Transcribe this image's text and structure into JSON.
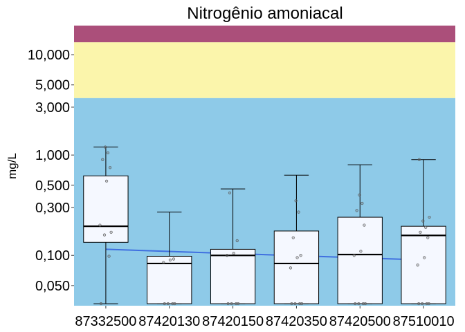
{
  "chart_data": {
    "type": "box",
    "title": "Nitrogênio amoniacal",
    "xlabel": "",
    "ylabel": "mg/L",
    "y_scale": "log10",
    "ylim": [
      0.0315,
      19.5
    ],
    "y_ticks": [
      {
        "value": 0.05,
        "label": "0,050"
      },
      {
        "value": 0.1,
        "label": "0,100"
      },
      {
        "value": 0.3,
        "label": "0,300"
      },
      {
        "value": 0.5,
        "label": "0,500"
      },
      {
        "value": 1,
        "label": "1,000"
      },
      {
        "value": 3,
        "label": "3,000"
      },
      {
        "value": 5,
        "label": "5,000"
      },
      {
        "value": 10,
        "label": "10,000"
      }
    ],
    "bands": [
      {
        "from": 0.0315,
        "to": 3.7,
        "color": "#8ecae8"
      },
      {
        "from": 3.7,
        "to": 13.3,
        "color": "#fbf5ab"
      },
      {
        "from": 13.3,
        "to": 19.5,
        "color": "#ab4f7a"
      }
    ],
    "categories": [
      "87332500",
      "87420130",
      "87420150",
      "87420350",
      "87420500",
      "87510010"
    ],
    "boxes": [
      {
        "category": "87332500",
        "min": 0.033,
        "q1": 0.135,
        "median": 0.195,
        "q3": 0.62,
        "max": 1.2
      },
      {
        "category": "87420130",
        "min": 0.033,
        "q1": 0.033,
        "median": 0.083,
        "q3": 0.098,
        "max": 0.27
      },
      {
        "category": "87420150",
        "min": 0.033,
        "q1": 0.033,
        "median": 0.1,
        "q3": 0.115,
        "max": 0.46
      },
      {
        "category": "87420350",
        "min": 0.033,
        "q1": 0.033,
        "median": 0.083,
        "q3": 0.175,
        "max": 0.63
      },
      {
        "category": "87420500",
        "min": 0.033,
        "q1": 0.033,
        "median": 0.102,
        "q3": 0.24,
        "max": 0.8
      },
      {
        "category": "87510010",
        "min": 0.033,
        "q1": 0.033,
        "median": 0.158,
        "q3": 0.195,
        "max": 0.9
      }
    ],
    "points": [
      {
        "category": "87332500",
        "values": [
          0.033,
          0.098,
          0.16,
          0.17,
          0.2,
          0.55,
          0.75,
          0.9,
          1.05,
          1.2
        ]
      },
      {
        "category": "87420130",
        "values": [
          0.033,
          0.033,
          0.033,
          0.033,
          0.085,
          0.09,
          0.092
        ]
      },
      {
        "category": "87420150",
        "values": [
          0.033,
          0.033,
          0.033,
          0.033,
          0.1,
          0.105,
          0.14,
          0.42
        ]
      },
      {
        "category": "87420350",
        "values": [
          0.033,
          0.033,
          0.033,
          0.033,
          0.075,
          0.095,
          0.1,
          0.15,
          0.27,
          0.35
        ]
      },
      {
        "category": "87420500",
        "values": [
          0.033,
          0.033,
          0.033,
          0.033,
          0.1,
          0.11,
          0.2,
          0.28,
          0.33,
          0.4
        ]
      },
      {
        "category": "87510010",
        "values": [
          0.033,
          0.033,
          0.033,
          0.033,
          0.08,
          0.095,
          0.15,
          0.17,
          0.19,
          0.22,
          0.24,
          0.9
        ]
      }
    ],
    "trend": {
      "color": "#3f6fe0",
      "y_start": 0.115,
      "y_end": 0.09
    },
    "grid": false,
    "legend": "none"
  }
}
